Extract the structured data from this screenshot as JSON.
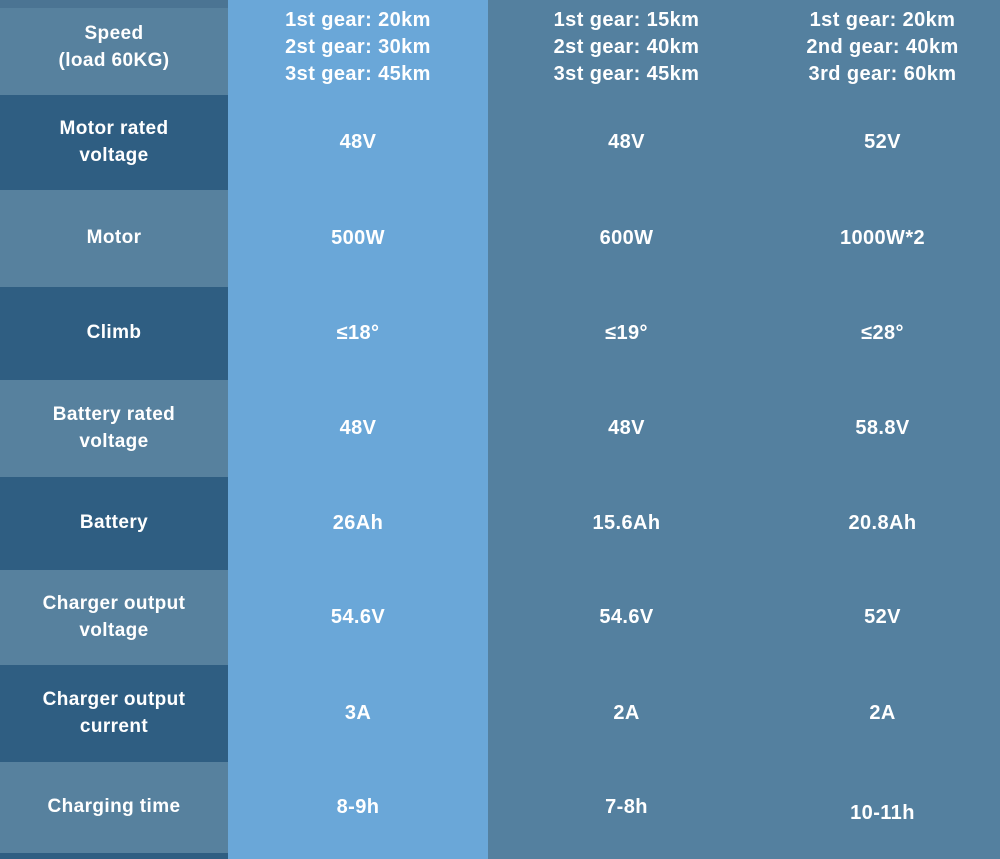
{
  "chart_data": {
    "type": "table",
    "layout": "spec comparison table, 9 rows, label column plus 3 model columns, second column highlighted",
    "rows": [
      {
        "label": "Speed\n(load 60KG)",
        "values": [
          "1st gear: 20km\n2st gear: 30km\n3st gear: 45km",
          "1st gear: 15km\n2st gear: 40km\n3st gear: 45km",
          "1st gear: 20km\n2nd gear: 40km\n3rd gear: 60km"
        ]
      },
      {
        "label": "Motor rated\nvoltage",
        "values": [
          "48V",
          "48V",
          "52V"
        ]
      },
      {
        "label": "Motor",
        "values": [
          "500W",
          "600W",
          "1000W*2"
        ]
      },
      {
        "label": "Climb",
        "values": [
          "≤18°",
          "≤19°",
          "≤28°"
        ]
      },
      {
        "label": "Battery rated\nvoltage",
        "values": [
          "48V",
          "48V",
          "58.8V"
        ]
      },
      {
        "label": "Battery",
        "values": [
          "26Ah",
          "15.6Ah",
          "20.8Ah"
        ]
      },
      {
        "label": "Charger output\nvoltage",
        "values": [
          "54.6V",
          "54.6V",
          "52V"
        ]
      },
      {
        "label": "Charger output\ncurrent",
        "values": [
          "3A",
          "2A",
          "2A"
        ]
      },
      {
        "label": "Charging time",
        "values": [
          "8-9h",
          "7-8h",
          "10-11h"
        ]
      }
    ]
  },
  "colors": {
    "highlight_column_bg": "#6aa7d8",
    "table_bg": "#54809f",
    "label_row_light": "#57819e",
    "label_row_dark": "#2f5e82",
    "label_top_strip": "#4b7493",
    "text": "#ffffff"
  }
}
